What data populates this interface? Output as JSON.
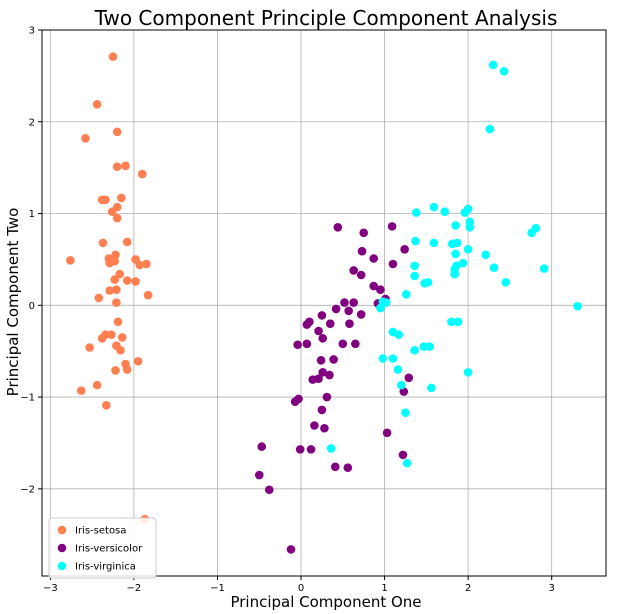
{
  "chart_data": {
    "type": "scatter",
    "title": "Two Component Principle Component Analysis",
    "xlabel": "Principal Component One",
    "ylabel": "Principal Component Two",
    "xlim": [
      -3.1,
      3.65
    ],
    "ylim": [
      -2.95,
      3.0
    ],
    "xticks": [
      -3,
      -2,
      -1,
      0,
      1,
      2,
      3
    ],
    "yticks": [
      -2,
      -1,
      0,
      1,
      2,
      3
    ],
    "xtick_labels": [
      "−3",
      "−2",
      "−1",
      "0",
      "1",
      "2",
      "3"
    ],
    "ytick_labels": [
      "−2",
      "−1",
      "0",
      "1",
      "2",
      "3"
    ],
    "grid": true,
    "legend_position": "lower-left",
    "series": [
      {
        "name": "Iris-setosa",
        "color": "#ff7f50",
        "points": [
          [
            -2.25,
            2.71
          ],
          [
            -2.44,
            2.19
          ],
          [
            -2.58,
            1.82
          ],
          [
            -2.2,
            1.89
          ],
          [
            -1.9,
            1.43
          ],
          [
            -2.1,
            1.52
          ],
          [
            -2.2,
            1.51
          ],
          [
            -2.15,
            1.17
          ],
          [
            -2.38,
            1.15
          ],
          [
            -2.34,
            1.15
          ],
          [
            -2.2,
            1.07
          ],
          [
            -2.26,
            1.02
          ],
          [
            -2.2,
            0.95
          ],
          [
            -2.37,
            0.68
          ],
          [
            -2.08,
            0.69
          ],
          [
            -2.22,
            0.55
          ],
          [
            -2.3,
            0.51
          ],
          [
            -2.23,
            0.48
          ],
          [
            -2.29,
            0.46
          ],
          [
            -1.98,
            0.5
          ],
          [
            -1.85,
            0.45
          ],
          [
            -1.93,
            0.44
          ],
          [
            -2.76,
            0.49
          ],
          [
            -2.17,
            0.34
          ],
          [
            -2.23,
            0.28
          ],
          [
            -2.08,
            0.27
          ],
          [
            -1.98,
            0.26
          ],
          [
            -2.29,
            0.16
          ],
          [
            -2.21,
            0.17
          ],
          [
            -2.42,
            0.08
          ],
          [
            -1.83,
            0.11
          ],
          [
            -2.21,
            0.03
          ],
          [
            -2.19,
            -0.18
          ],
          [
            -2.34,
            -0.32
          ],
          [
            -2.38,
            -0.36
          ],
          [
            -2.27,
            -0.32
          ],
          [
            -2.14,
            -0.35
          ],
          [
            -2.21,
            -0.44
          ],
          [
            -2.16,
            -0.49
          ],
          [
            -2.53,
            -0.46
          ],
          [
            -1.95,
            -0.61
          ],
          [
            -2.1,
            -0.64
          ],
          [
            -2.08,
            -0.7
          ],
          [
            -2.22,
            -0.71
          ],
          [
            -2.44,
            -0.87
          ],
          [
            -2.63,
            -0.93
          ],
          [
            -2.33,
            -1.09
          ],
          [
            -1.87,
            -2.33
          ]
        ]
      },
      {
        "name": "Iris-versicolor",
        "color": "#800080",
        "points": [
          [
            0.44,
            0.85
          ],
          [
            1.09,
            0.86
          ],
          [
            0.75,
            0.79
          ],
          [
            0.73,
            0.59
          ],
          [
            0.87,
            0.51
          ],
          [
            1.24,
            0.61
          ],
          [
            1.1,
            0.45
          ],
          [
            0.63,
            0.38
          ],
          [
            0.72,
            0.33
          ],
          [
            0.87,
            0.21
          ],
          [
            0.95,
            0.17
          ],
          [
            0.52,
            0.03
          ],
          [
            0.63,
            0.03
          ],
          [
            1.01,
            0.07
          ],
          [
            0.92,
            0.02
          ],
          [
            0.42,
            -0.04
          ],
          [
            0.57,
            -0.06
          ],
          [
            0.25,
            -0.11
          ],
          [
            0.72,
            -0.1
          ],
          [
            0.58,
            -0.2
          ],
          [
            0.35,
            -0.2
          ],
          [
            0.1,
            -0.18
          ],
          [
            0.07,
            -0.21
          ],
          [
            0.21,
            -0.28
          ],
          [
            0.26,
            -0.36
          ],
          [
            0.07,
            -0.42
          ],
          [
            -0.04,
            -0.43
          ],
          [
            0.5,
            -0.42
          ],
          [
            0.65,
            -0.42
          ],
          [
            0.24,
            -0.6
          ],
          [
            0.39,
            -0.59
          ],
          [
            0.26,
            -0.73
          ],
          [
            0.34,
            -0.76
          ],
          [
            0.14,
            -0.81
          ],
          [
            0.21,
            -0.8
          ],
          [
            -0.03,
            -1.02
          ],
          [
            -0.07,
            -1.05
          ],
          [
            0.31,
            -1.0
          ],
          [
            0.25,
            -1.14
          ],
          [
            0.16,
            -1.31
          ],
          [
            0.28,
            -1.34
          ],
          [
            1.23,
            -0.94
          ],
          [
            1.29,
            -0.79
          ],
          [
            1.03,
            -1.39
          ],
          [
            -0.01,
            -1.57
          ],
          [
            0.12,
            -1.57
          ],
          [
            0.41,
            -1.76
          ],
          [
            0.56,
            -1.77
          ],
          [
            1.22,
            -1.63
          ],
          [
            -0.47,
            -1.54
          ],
          [
            -0.5,
            -1.85
          ],
          [
            -0.38,
            -2.01
          ],
          [
            -0.12,
            -2.66
          ]
        ]
      },
      {
        "name": "Iris-virginica",
        "color": "#00ffff",
        "points": [
          [
            2.3,
            2.62
          ],
          [
            2.43,
            2.55
          ],
          [
            2.26,
            1.92
          ],
          [
            1.59,
            1.07
          ],
          [
            1.72,
            1.02
          ],
          [
            1.96,
            1.01
          ],
          [
            2.0,
            1.05
          ],
          [
            1.38,
            1.01
          ],
          [
            2.02,
            0.91
          ],
          [
            2.02,
            0.85
          ],
          [
            1.85,
            0.87
          ],
          [
            1.59,
            0.68
          ],
          [
            1.81,
            0.67
          ],
          [
            1.37,
            0.7
          ],
          [
            1.87,
            0.68
          ],
          [
            2.0,
            0.61
          ],
          [
            1.85,
            0.56
          ],
          [
            2.21,
            0.55
          ],
          [
            1.86,
            0.43
          ],
          [
            1.84,
            0.39
          ],
          [
            1.84,
            0.34
          ],
          [
            1.36,
            0.43
          ],
          [
            1.94,
            0.46
          ],
          [
            2.31,
            0.41
          ],
          [
            2.76,
            0.79
          ],
          [
            2.81,
            0.84
          ],
          [
            2.91,
            0.4
          ],
          [
            1.52,
            0.25
          ],
          [
            1.48,
            0.24
          ],
          [
            2.45,
            0.25
          ],
          [
            1.36,
            0.32
          ],
          [
            0.98,
            0.04
          ],
          [
            0.95,
            -0.03
          ],
          [
            1.02,
            0.03
          ],
          [
            1.26,
            0.12
          ],
          [
            1.1,
            -0.29
          ],
          [
            1.17,
            -0.32
          ],
          [
            1.8,
            -0.18
          ],
          [
            1.88,
            -0.18
          ],
          [
            1.54,
            -0.45
          ],
          [
            1.36,
            -0.49
          ],
          [
            1.47,
            -0.45
          ],
          [
            0.98,
            -0.58
          ],
          [
            1.1,
            -0.58
          ],
          [
            1.16,
            -0.7
          ],
          [
            2.0,
            -0.73
          ],
          [
            1.2,
            -0.87
          ],
          [
            1.56,
            -0.9
          ],
          [
            1.25,
            -1.17
          ],
          [
            0.36,
            -1.56
          ],
          [
            1.27,
            -1.72
          ],
          [
            3.31,
            -0.01
          ]
        ]
      }
    ]
  }
}
